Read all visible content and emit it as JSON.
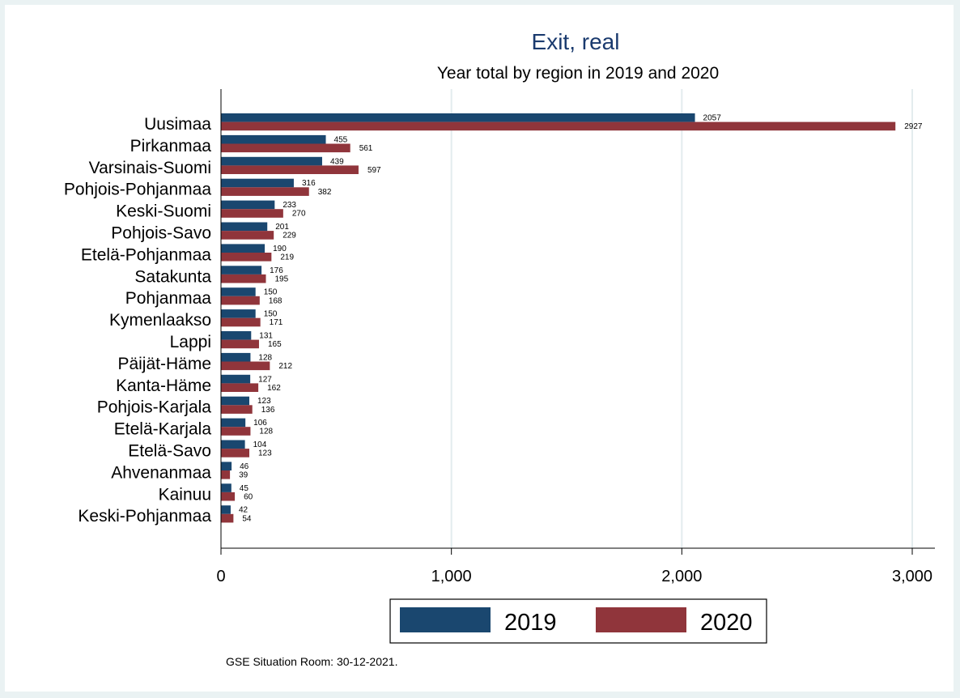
{
  "chart_data": {
    "type": "bar",
    "orientation": "horizontal",
    "title": "Exit, real",
    "subtitle": "Year total by region in 2019 and 2020",
    "categories": [
      "Uusimaa",
      "Pirkanmaa",
      "Varsinais-Suomi",
      "Pohjois-Pohjanmaa",
      "Keski-Suomi",
      "Pohjois-Savo",
      "Etelä-Pohjanmaa",
      "Satakunta",
      "Pohjanmaa",
      "Kymenlaakso",
      "Lappi",
      "Päijät-Häme",
      "Kanta-Häme",
      "Pohjois-Karjala",
      "Etelä-Karjala",
      "Etelä-Savo",
      "Ahvenanmaa",
      "Kainuu",
      "Keski-Pohjanmaa"
    ],
    "series": [
      {
        "name": "2019",
        "color": "#1a476f",
        "values": [
          2057,
          455,
          439,
          316,
          233,
          201,
          190,
          176,
          150,
          150,
          131,
          128,
          127,
          123,
          106,
          104,
          46,
          45,
          42
        ]
      },
      {
        "name": "2020",
        "color": "#90353b",
        "values": [
          2927,
          561,
          597,
          382,
          270,
          229,
          219,
          195,
          168,
          171,
          165,
          212,
          162,
          136,
          128,
          123,
          39,
          60,
          54
        ]
      }
    ],
    "xlim": [
      0,
      3000
    ],
    "xticks": [
      0,
      1000,
      2000,
      3000
    ],
    "xtick_labels": [
      "0",
      "1,000",
      "2,000",
      "3,000"
    ],
    "grid": true,
    "legend_position": "bottom",
    "note": "GSE Situation Room: 30-12-2021."
  }
}
